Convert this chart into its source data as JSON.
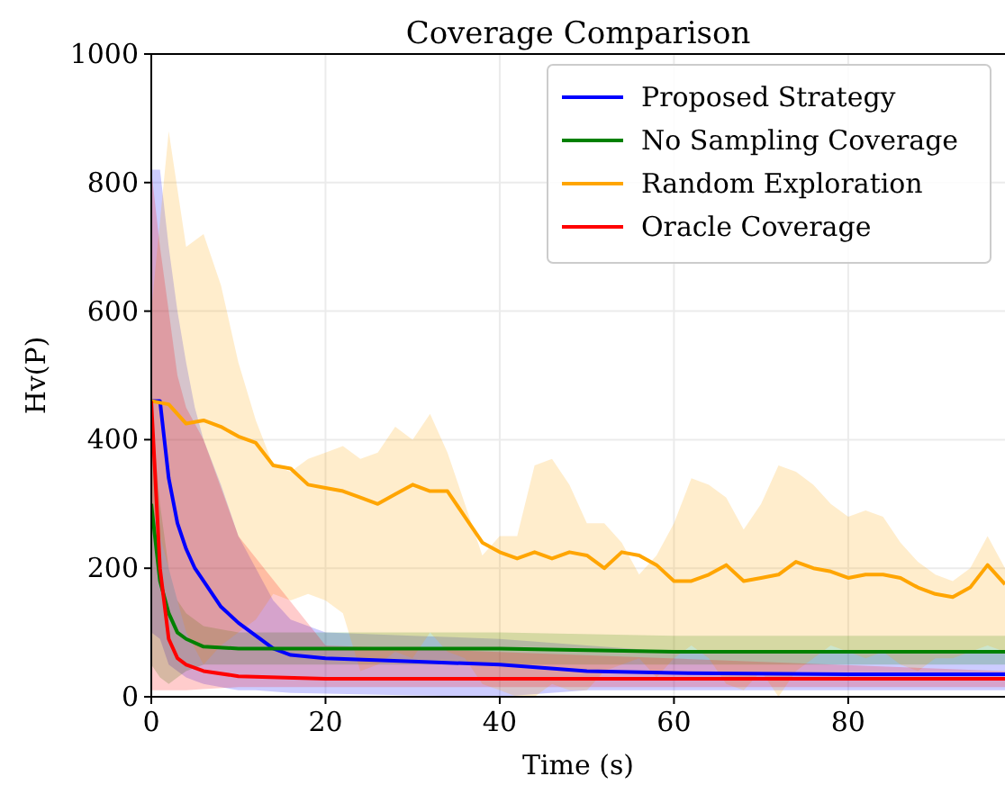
{
  "chart_data": {
    "type": "line",
    "title": "Coverage Comparison",
    "xlabel": "Time (s)",
    "ylabel": "Hv(P)",
    "xlim": [
      0,
      98
    ],
    "ylim": [
      0,
      1000
    ],
    "xticks": [
      0,
      20,
      40,
      60,
      80
    ],
    "yticks": [
      0,
      200,
      400,
      600,
      800,
      1000
    ],
    "grid": true,
    "legend": "top right",
    "line_style": "solid",
    "series": [
      {
        "name": "Proposed Strategy",
        "color": "#0000ff",
        "x": [
          0,
          1,
          2,
          3,
          4,
          5,
          6,
          8,
          10,
          12,
          14,
          16,
          20,
          30,
          40,
          50,
          60,
          80,
          98
        ],
        "values": [
          460,
          460,
          340,
          270,
          230,
          200,
          180,
          140,
          115,
          95,
          75,
          65,
          60,
          55,
          50,
          40,
          37,
          35,
          35
        ],
        "lower": [
          100,
          90,
          50,
          40,
          30,
          25,
          20,
          15,
          10,
          10,
          8,
          6,
          5,
          2,
          0,
          10,
          10,
          10,
          10
        ],
        "upper": [
          820,
          820,
          700,
          600,
          520,
          450,
          400,
          330,
          250,
          200,
          150,
          120,
          100,
          95,
          90,
          80,
          70,
          70,
          70
        ]
      },
      {
        "name": "No Sampling Coverage",
        "color": "#008000",
        "x": [
          0,
          1,
          2,
          3,
          4,
          6,
          10,
          20,
          40,
          60,
          98
        ],
        "values": [
          300,
          180,
          130,
          100,
          90,
          78,
          75,
          75,
          75,
          70,
          70
        ],
        "lower": [
          50,
          30,
          20,
          30,
          40,
          50,
          50,
          50,
          50,
          50,
          50
        ],
        "upper": [
          450,
          300,
          200,
          150,
          130,
          110,
          100,
          100,
          100,
          95,
          95
        ]
      },
      {
        "name": "Random Exploration",
        "color": "#ffa500",
        "x": [
          0,
          2,
          4,
          6,
          8,
          10,
          12,
          14,
          16,
          18,
          20,
          22,
          24,
          26,
          28,
          30,
          32,
          34,
          36,
          38,
          40,
          42,
          44,
          46,
          48,
          50,
          52,
          54,
          56,
          58,
          60,
          62,
          64,
          66,
          68,
          70,
          72,
          74,
          76,
          78,
          80,
          82,
          84,
          86,
          88,
          90,
          92,
          94,
          96,
          98
        ],
        "values": [
          460,
          455,
          425,
          430,
          420,
          405,
          395,
          360,
          355,
          330,
          325,
          320,
          310,
          300,
          315,
          330,
          320,
          320,
          280,
          240,
          225,
          215,
          225,
          215,
          225,
          220,
          200,
          225,
          220,
          205,
          180,
          180,
          190,
          205,
          180,
          185,
          190,
          210,
          200,
          195,
          185,
          190,
          190,
          185,
          170,
          160,
          155,
          170,
          205,
          175
        ],
        "lower": [
          300,
          200,
          100,
          50,
          80,
          100,
          120,
          160,
          150,
          160,
          150,
          130,
          40,
          50,
          70,
          60,
          100,
          70,
          60,
          20,
          10,
          0,
          0,
          20,
          10,
          10,
          40,
          50,
          60,
          30,
          60,
          80,
          60,
          20,
          10,
          40,
          0,
          40,
          60,
          80,
          70,
          60,
          70,
          50,
          40,
          60,
          60,
          70,
          80,
          70
        ],
        "upper": [
          600,
          880,
          700,
          720,
          640,
          520,
          430,
          360,
          350,
          370,
          380,
          390,
          370,
          380,
          420,
          400,
          440,
          380,
          300,
          220,
          250,
          250,
          360,
          370,
          330,
          270,
          270,
          240,
          190,
          220,
          270,
          340,
          330,
          310,
          260,
          300,
          360,
          350,
          330,
          300,
          280,
          290,
          280,
          240,
          210,
          190,
          180,
          200,
          250,
          200
        ]
      },
      {
        "name": "Oracle Coverage",
        "color": "#ff0000",
        "x": [
          0,
          1,
          2,
          3,
          4,
          6,
          10,
          20,
          98
        ],
        "values": [
          460,
          200,
          90,
          60,
          50,
          40,
          32,
          28,
          28
        ],
        "lower": [
          10,
          10,
          10,
          10,
          10,
          12,
          15,
          15,
          15
        ],
        "upper": [
          820,
          700,
          600,
          500,
          450,
          400,
          250,
          80,
          40
        ]
      }
    ]
  }
}
